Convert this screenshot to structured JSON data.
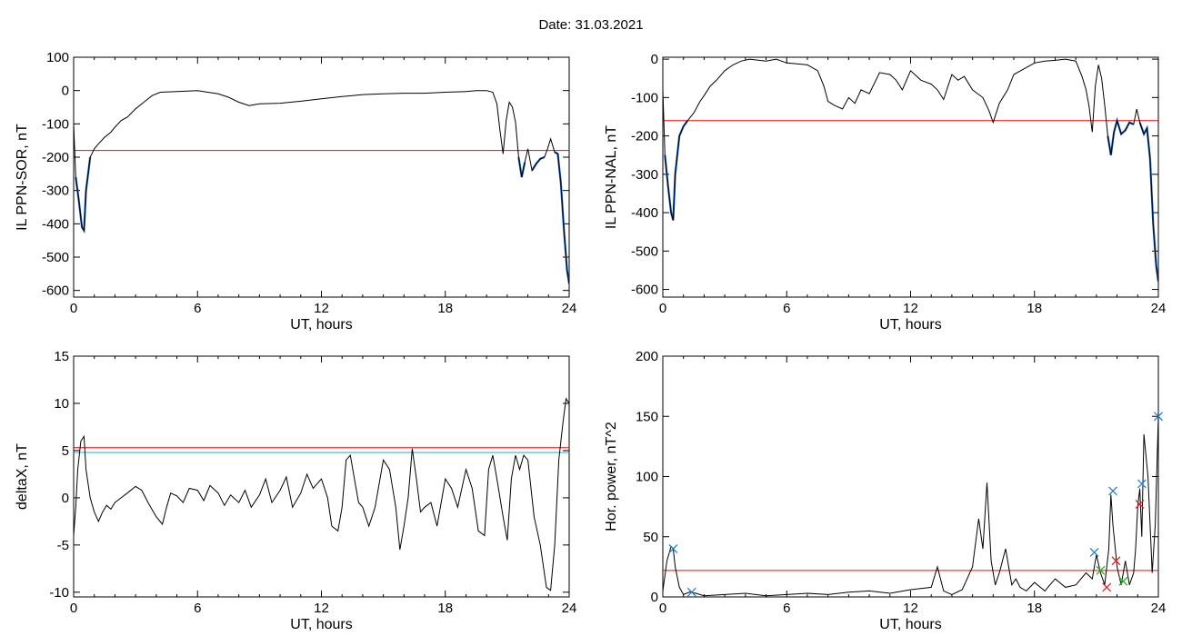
{
  "page": {
    "title": "Date:  31.03.2021"
  },
  "colors": {
    "trace": "#000000",
    "threshold_red": "#ff0000",
    "threshold_blue": "#2aa7d6",
    "highlight": "#1560c8",
    "marker_blue": "#2080d0",
    "marker_red": "#e02020",
    "marker_green": "#20b020"
  },
  "chart_data": [
    {
      "type": "line",
      "xlabel": "UT, hours",
      "ylabel": "IL PPN-SOR, nT",
      "xlim": [
        0,
        24
      ],
      "ylim": [
        -620,
        100
      ],
      "xticks": [
        0,
        6,
        12,
        18,
        24
      ],
      "yticks": [
        100,
        0,
        -100,
        -200,
        -300,
        -400,
        -500,
        -600
      ],
      "threshold": -180,
      "series": [
        {
          "x": [
            0,
            0.1,
            0.25,
            0.4,
            0.5,
            0.6,
            0.8,
            1.0,
            1.2,
            1.5,
            1.8,
            2.0,
            2.3,
            2.6,
            3.0,
            3.4,
            3.8,
            4.2,
            5.0,
            6.0,
            7.0,
            7.5,
            8.0,
            8.5,
            9.0,
            10.0,
            11.0,
            12.0,
            13.0,
            14.0,
            15.0,
            16.0,
            17.0,
            18.0,
            19.0,
            19.5,
            20.0,
            20.3,
            20.5,
            20.65,
            20.8,
            20.95,
            21.1,
            21.25,
            21.4,
            21.55,
            21.7,
            21.85,
            22.0,
            22.2,
            22.4,
            22.6,
            22.8,
            22.95,
            23.1,
            23.3,
            23.45,
            23.6,
            23.75,
            23.9,
            24.0
          ],
          "y": [
            -100,
            -260,
            -330,
            -410,
            -420,
            -300,
            -200,
            -175,
            -160,
            -140,
            -125,
            -110,
            -90,
            -80,
            -55,
            -35,
            -15,
            -5,
            -3,
            0,
            -10,
            -20,
            -35,
            -45,
            -40,
            -38,
            -32,
            -25,
            -18,
            -12,
            -10,
            -8,
            -8,
            -5,
            -3,
            0,
            0,
            -5,
            -40,
            -120,
            -190,
            -90,
            -35,
            -50,
            -95,
            -200,
            -260,
            -215,
            -175,
            -240,
            -220,
            -205,
            -200,
            -175,
            -145,
            -185,
            -190,
            -280,
            -420,
            -540,
            -580
          ]
        }
      ]
    },
    {
      "type": "line",
      "xlabel": "UT, hours",
      "ylabel": "IL PPN-NAL, nT",
      "xlim": [
        0,
        24
      ],
      "ylim": [
        -620,
        5
      ],
      "xticks": [
        0,
        6,
        12,
        18,
        24
      ],
      "yticks": [
        0,
        -100,
        -200,
        -300,
        -400,
        -500,
        -600
      ],
      "threshold": -160,
      "series": [
        {
          "x": [
            0,
            0.1,
            0.25,
            0.4,
            0.5,
            0.6,
            0.8,
            1.0,
            1.2,
            1.5,
            1.8,
            2.0,
            2.3,
            2.6,
            3.0,
            3.4,
            3.8,
            4.2,
            5.0,
            5.5,
            6.0,
            6.5,
            7.0,
            7.5,
            7.8,
            8.0,
            8.3,
            8.7,
            9.0,
            9.3,
            9.6,
            10.0,
            10.5,
            11.0,
            11.3,
            11.6,
            12.0,
            12.5,
            13.0,
            13.3,
            13.6,
            14.0,
            14.3,
            14.6,
            15.0,
            15.5,
            15.8,
            16.0,
            16.3,
            16.7,
            17.0,
            17.5,
            18.0,
            18.5,
            19.0,
            19.5,
            20.0,
            20.3,
            20.5,
            20.65,
            20.8,
            20.95,
            21.1,
            21.25,
            21.4,
            21.55,
            21.7,
            21.85,
            22.0,
            22.2,
            22.4,
            22.6,
            22.8,
            22.95,
            23.1,
            23.3,
            23.45,
            23.6,
            23.75,
            23.9,
            24.0
          ],
          "y": [
            -80,
            -250,
            -330,
            -400,
            -420,
            -300,
            -200,
            -175,
            -160,
            -140,
            -110,
            -95,
            -70,
            -55,
            -30,
            -15,
            -5,
            0,
            -5,
            0,
            -10,
            -12,
            -15,
            -30,
            -70,
            -110,
            -120,
            -130,
            -100,
            -115,
            -80,
            -90,
            -35,
            -40,
            -55,
            -80,
            -30,
            -55,
            -65,
            -80,
            -105,
            -40,
            -55,
            -45,
            -80,
            -100,
            -135,
            -165,
            -115,
            -80,
            -40,
            -25,
            -10,
            -5,
            -3,
            0,
            -5,
            -45,
            -80,
            -125,
            -190,
            -70,
            -15,
            -50,
            -120,
            -200,
            -250,
            -190,
            -160,
            -195,
            -185,
            -165,
            -170,
            -130,
            -165,
            -195,
            -180,
            -260,
            -430,
            -540,
            -580
          ]
        }
      ]
    },
    {
      "type": "line",
      "xlabel": "UT, hours",
      "ylabel": "deltaX, nT",
      "xlim": [
        0,
        24
      ],
      "ylim": [
        -10.5,
        15
      ],
      "xticks": [
        0,
        6,
        12,
        18,
        24
      ],
      "yticks": [
        15,
        10,
        5,
        0,
        -5,
        -10
      ],
      "threshold_red": 5.3,
      "threshold_blue": 4.8,
      "series": [
        {
          "x": [
            0,
            0.1,
            0.2,
            0.35,
            0.5,
            0.6,
            0.8,
            1.0,
            1.2,
            1.4,
            1.6,
            1.8,
            2.0,
            2.3,
            2.6,
            3.0,
            3.3,
            3.6,
            4.0,
            4.3,
            4.5,
            4.7,
            5.0,
            5.3,
            5.6,
            6.0,
            6.3,
            6.6,
            7.0,
            7.3,
            7.6,
            8.0,
            8.3,
            8.6,
            9.0,
            9.3,
            9.6,
            10.0,
            10.3,
            10.6,
            11.0,
            11.3,
            11.6,
            12.0,
            12.3,
            12.5,
            12.8,
            13.0,
            13.2,
            13.4,
            13.6,
            13.8,
            14.0,
            14.3,
            14.6,
            15.0,
            15.3,
            15.6,
            15.8,
            16.0,
            16.2,
            16.4,
            16.6,
            16.8,
            17.0,
            17.3,
            17.6,
            18.0,
            18.3,
            18.6,
            19.0,
            19.3,
            19.6,
            19.9,
            20.1,
            20.3,
            20.5,
            20.8,
            21.0,
            21.2,
            21.4,
            21.6,
            21.8,
            22.0,
            22.3,
            22.6,
            22.9,
            23.1,
            23.3,
            23.5,
            23.7,
            23.85,
            24.0
          ],
          "y": [
            -4,
            -1,
            3,
            6,
            6.5,
            3,
            0,
            -1.5,
            -2.5,
            -1.5,
            -0.8,
            -1.2,
            -0.5,
            0,
            0.5,
            1.2,
            0.8,
            -0.5,
            -2.0,
            -2.8,
            -1.0,
            0.5,
            0.2,
            -0.5,
            1.0,
            0.8,
            -0.3,
            1.3,
            0.5,
            -0.8,
            0.3,
            -0.5,
            0.8,
            -1.0,
            0.3,
            2.0,
            -0.5,
            0.8,
            2.2,
            -1.0,
            0.5,
            2.5,
            1.0,
            2.0,
            0,
            -3.0,
            -3.5,
            -1.0,
            4.0,
            4.5,
            2.0,
            -0.5,
            -1.0,
            -3.0,
            -1.0,
            4.0,
            3.0,
            -1.0,
            -5.5,
            -3.0,
            0,
            5.2,
            2.0,
            -1.5,
            -1.0,
            -0.5,
            -3.0,
            2.0,
            1.0,
            -1.0,
            3.0,
            1.0,
            -3.5,
            -4.0,
            3.0,
            4.5,
            2.0,
            -2.0,
            -4.5,
            2.0,
            4.5,
            3.0,
            4.5,
            4.0,
            -2.0,
            -5.0,
            -9.5,
            -9.8,
            -5.0,
            4.0,
            8.0,
            10.5,
            10.0
          ]
        }
      ]
    },
    {
      "type": "line",
      "xlabel": "UT, hours",
      "ylabel": "Hor. power, nT^2",
      "xlim": [
        0,
        24
      ],
      "ylim": [
        0,
        200
      ],
      "xticks": [
        0,
        6,
        12,
        18,
        24
      ],
      "yticks": [
        200,
        150,
        100,
        50,
        0
      ],
      "threshold": 22,
      "series": [
        {
          "x": [
            0,
            0.2,
            0.4,
            0.5,
            0.6,
            0.8,
            1.0,
            1.3,
            1.6,
            2.0,
            3.0,
            4.0,
            5.0,
            6.0,
            7.0,
            8.0,
            9.0,
            10.0,
            11.0,
            12.0,
            13.0,
            13.3,
            13.6,
            14.0,
            14.5,
            15.0,
            15.3,
            15.5,
            15.7,
            15.9,
            16.1,
            16.3,
            16.6,
            16.9,
            17.1,
            17.3,
            17.6,
            18.0,
            18.5,
            19.0,
            19.5,
            20.0,
            20.5,
            20.8,
            21.0,
            21.2,
            21.4,
            21.6,
            21.7,
            21.8,
            22.0,
            22.2,
            22.4,
            22.6,
            22.8,
            22.9,
            23.0,
            23.1,
            23.2,
            23.3,
            23.5,
            23.7,
            23.85,
            24.0
          ],
          "y": [
            5,
            30,
            42,
            40,
            25,
            8,
            2,
            4,
            3,
            1,
            2,
            3,
            1,
            2,
            3,
            2,
            4,
            5,
            3,
            6,
            8,
            25,
            5,
            2,
            6,
            25,
            65,
            40,
            95,
            30,
            10,
            20,
            40,
            10,
            15,
            8,
            5,
            12,
            5,
            15,
            8,
            10,
            20,
            15,
            35,
            20,
            10,
            40,
            85,
            60,
            25,
            10,
            30,
            10,
            20,
            40,
            75,
            90,
            50,
            135,
            100,
            20,
            60,
            150
          ]
        }
      ],
      "markers": [
        {
          "x": 0.5,
          "y": 40,
          "kind": "x-blue"
        },
        {
          "x": 1.4,
          "y": 4,
          "kind": "x-blue"
        },
        {
          "x": 20.9,
          "y": 37,
          "kind": "x-blue"
        },
        {
          "x": 21.8,
          "y": 88,
          "kind": "x-blue"
        },
        {
          "x": 23.2,
          "y": 94,
          "kind": "x-blue"
        },
        {
          "x": 24.0,
          "y": 150,
          "kind": "x-blue"
        },
        {
          "x": 21.5,
          "y": 8,
          "kind": "x-red"
        },
        {
          "x": 21.95,
          "y": 30,
          "kind": "x-red"
        },
        {
          "x": 23.1,
          "y": 77,
          "kind": "x-red"
        },
        {
          "x": 21.2,
          "y": 22,
          "kind": "x-green"
        },
        {
          "x": 22.3,
          "y": 13,
          "kind": "x-green"
        }
      ]
    }
  ]
}
